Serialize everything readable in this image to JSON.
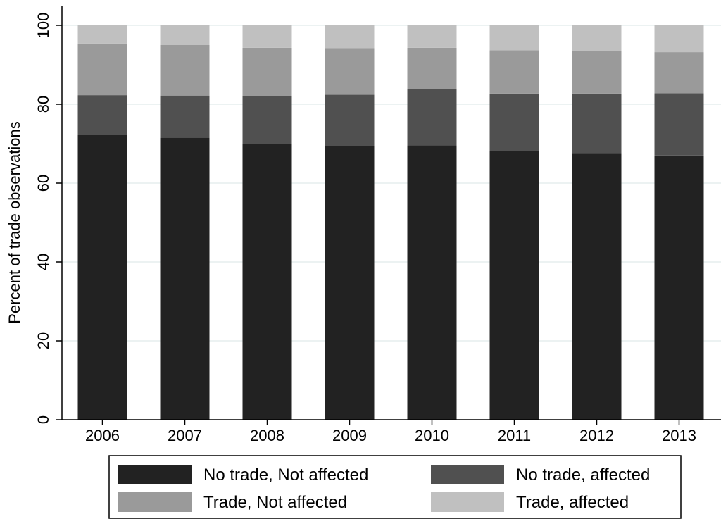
{
  "chart_data": {
    "type": "bar",
    "stacked": true,
    "categories": [
      "2006",
      "2007",
      "2008",
      "2009",
      "2010",
      "2011",
      "2012",
      "2013"
    ],
    "series": [
      {
        "name": "No trade, Not affected",
        "color": "#222222",
        "values": [
          72.2,
          71.5,
          70.0,
          69.3,
          69.6,
          68.1,
          67.6,
          67.0
        ]
      },
      {
        "name": "No trade, affected",
        "color": "#505050",
        "values": [
          10.1,
          10.7,
          12.1,
          13.1,
          14.3,
          14.6,
          15.1,
          15.8
        ]
      },
      {
        "name": "Trade, Not affected",
        "color": "#9a9a9a",
        "values": [
          13.1,
          12.8,
          12.2,
          11.8,
          10.4,
          11.0,
          10.7,
          10.4
        ]
      },
      {
        "name": "Trade, affected",
        "color": "#c0c0c0",
        "values": [
          4.6,
          5.0,
          5.7,
          5.8,
          5.7,
          6.3,
          6.6,
          6.8
        ]
      }
    ],
    "xlabel": "",
    "ylabel": "Percent of trade observations",
    "ylim": [
      0,
      100
    ],
    "yticks": [
      "0",
      "20",
      "40",
      "60",
      "80",
      "100"
    ],
    "grid": true,
    "legend_position": "bottom"
  }
}
